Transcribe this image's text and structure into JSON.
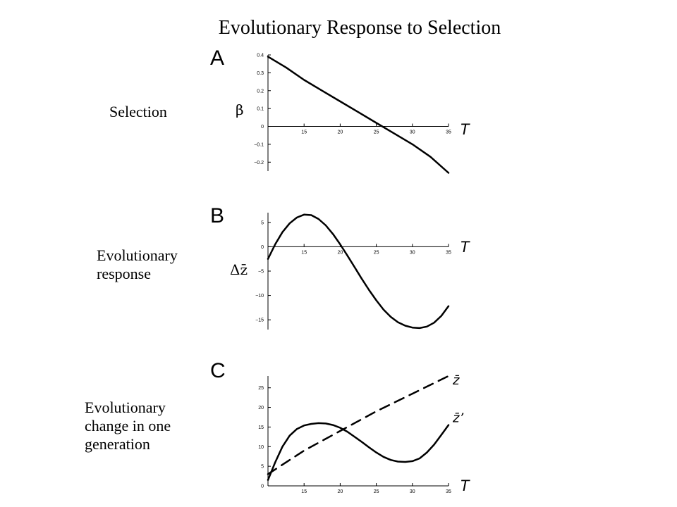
{
  "page": {
    "title": "Evolutionary Response to Selection",
    "side_labels": {
      "a": "Selection",
      "b": "Evolutionary response",
      "c": "Evolutionary change in one generation"
    }
  },
  "chart_data": [
    {
      "type": "line",
      "panel_letter": "A",
      "xlabel": "T",
      "ylabel": "β",
      "xlim": [
        10,
        35
      ],
      "ylim": [
        -0.25,
        0.4
      ],
      "xticks": [
        15,
        20,
        25,
        30,
        35
      ],
      "yticks": [
        -0.2,
        -0.1,
        0,
        0.1,
        0.2,
        0.3,
        0.4
      ],
      "ytick_labels": [
        "−0.2",
        "−0.1",
        "0",
        "0.1",
        "0.2",
        "0.3",
        "0.4"
      ],
      "series": [
        {
          "style": "solid",
          "x": [
            10,
            12.5,
            15,
            17.5,
            20,
            22.5,
            25,
            27.5,
            30,
            32.5,
            35
          ],
          "y": [
            0.39,
            0.33,
            0.26,
            0.2,
            0.14,
            0.08,
            0.02,
            -0.04,
            -0.1,
            -0.17,
            -0.26
          ]
        }
      ]
    },
    {
      "type": "line",
      "panel_letter": "B",
      "xlabel": "T",
      "ylabel": "Δz̄",
      "xlim": [
        10,
        35
      ],
      "ylim": [
        -17,
        7
      ],
      "xticks": [
        15,
        20,
        25,
        30,
        35
      ],
      "yticks": [
        -15,
        -10,
        -5,
        0,
        5
      ],
      "ytick_labels": [
        "−15",
        "−10",
        "−5",
        "0",
        "5"
      ],
      "series": [
        {
          "style": "solid",
          "x": [
            10,
            11,
            12,
            13,
            14,
            15,
            16,
            17,
            18,
            19,
            20,
            21,
            22,
            23,
            24,
            25,
            26,
            27,
            28,
            29,
            30,
            31,
            32,
            33,
            34,
            35
          ],
          "y": [
            -2.5,
            0.5,
            3,
            4.8,
            6,
            6.6,
            6.5,
            5.7,
            4.4,
            2.6,
            0.5,
            -1.8,
            -4.2,
            -6.6,
            -8.9,
            -11,
            -12.9,
            -14.4,
            -15.5,
            -16.2,
            -16.6,
            -16.7,
            -16.4,
            -15.6,
            -14.2,
            -12.2
          ]
        }
      ]
    },
    {
      "type": "line",
      "panel_letter": "C",
      "xlabel": "T",
      "xlim": [
        10,
        35
      ],
      "ylim": [
        0,
        28
      ],
      "xticks": [
        15,
        20,
        25,
        30,
        35
      ],
      "yticks": [
        0,
        5,
        10,
        15,
        20,
        25
      ],
      "ytick_labels": [
        "0",
        "5",
        "10",
        "15",
        "20",
        "25"
      ],
      "series": [
        {
          "name": "z̄",
          "style": "dashed",
          "x": [
            10,
            15,
            20,
            25,
            30,
            35
          ],
          "y": [
            3,
            9,
            14,
            19,
            23.5,
            28
          ]
        },
        {
          "name": "z̄’",
          "style": "solid",
          "x": [
            10,
            11,
            12,
            13,
            14,
            15,
            16,
            17,
            18,
            19,
            20,
            21,
            22,
            23,
            24,
            25,
            26,
            27,
            28,
            29,
            30,
            31,
            32,
            33,
            34,
            35
          ],
          "y": [
            1.5,
            6,
            10,
            12.8,
            14.5,
            15.4,
            15.8,
            16,
            15.9,
            15.5,
            14.8,
            13.8,
            12.5,
            11.2,
            9.8,
            8.5,
            7.4,
            6.6,
            6.2,
            6.1,
            6.3,
            7,
            8.5,
            10.5,
            13,
            15.5
          ]
        }
      ]
    }
  ]
}
